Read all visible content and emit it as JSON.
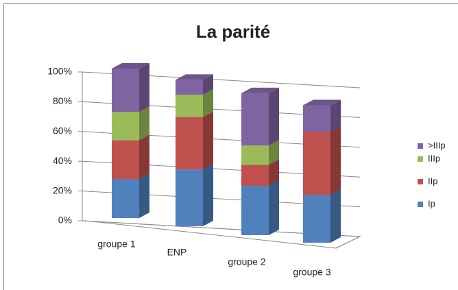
{
  "chart_data": {
    "type": "bar3d-stacked",
    "title": "La parité",
    "categories": [
      "groupe 1",
      "ENP",
      "groupe 2",
      "groupe 3"
    ],
    "series": [
      {
        "name": "Ip",
        "color": "#4f81bd",
        "values": [
          26,
          38,
          33,
          32
        ]
      },
      {
        "name": "IIp",
        "color": "#c0504d",
        "values": [
          26,
          35,
          14,
          42
        ]
      },
      {
        "name": "IIIp",
        "color": "#9bbb59",
        "values": [
          19,
          15,
          13,
          0
        ]
      },
      {
        "name": ">IIIp",
        "color": "#8064a2",
        "values": [
          29,
          10,
          35,
          18
        ]
      }
    ],
    "ylim": [
      0,
      100
    ],
    "yticks": [
      {
        "value": 0,
        "label": "0%"
      },
      {
        "value": 20,
        "label": "20%"
      },
      {
        "value": 40,
        "label": "40%"
      },
      {
        "value": 60,
        "label": "60%"
      },
      {
        "value": 80,
        "label": "80%"
      },
      {
        "value": 100,
        "label": "100%"
      }
    ],
    "grid": true,
    "legend": "right"
  }
}
